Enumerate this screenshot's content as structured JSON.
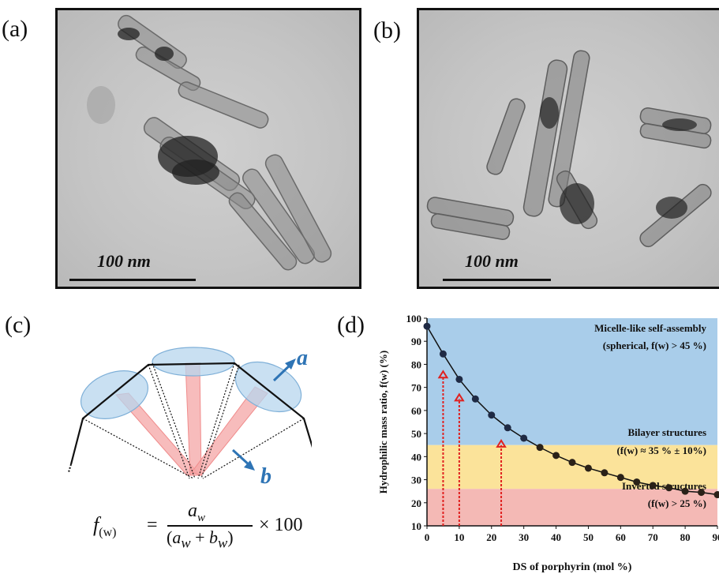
{
  "panels": {
    "a": {
      "label": "(a)",
      "scale_bar": "100 nm"
    },
    "b": {
      "label": "(b)",
      "scale_bar": "100 nm"
    },
    "c": {
      "label": "(c)",
      "vector_a": "a",
      "vector_b": "b",
      "formula": {
        "lhs": "f",
        "lhs_sub": "(w)",
        "num": "a",
        "num_sub": "w",
        "den_a": "a",
        "den_a_sub": "w",
        "den_b": "b",
        "den_b_sub": "w",
        "times": "× 100"
      }
    },
    "d": {
      "label": "(d)"
    }
  },
  "colors": {
    "micelle_region": "#a9cdea",
    "bilayer_region": "#fbe39a",
    "inverted_region": "#f4b9b5",
    "arrow": "#e0201f",
    "vector": "#2e74b5"
  },
  "chart_data": {
    "type": "line",
    "xlabel": "DS of porphyrin (mol %)",
    "ylabel": "Hydrophilic mass ratio, f(w) (%)",
    "xlim": [
      0,
      90
    ],
    "ylim": [
      10,
      100
    ],
    "xticks": [
      0,
      10,
      20,
      30,
      40,
      50,
      60,
      70,
      80,
      90
    ],
    "yticks": [
      10,
      20,
      30,
      40,
      50,
      60,
      70,
      80,
      90,
      100
    ],
    "regions": [
      {
        "name": "Micelle-like self-assembly",
        "detail": "(spherical, f(w) > 45 %)",
        "from": 45,
        "to": 100,
        "color": "#a9cdea"
      },
      {
        "name": "Bilayer structures",
        "detail": "(f(w) ≈ 35 % ± 10%)",
        "from": 26,
        "to": 45,
        "color": "#fbe39a"
      },
      {
        "name": "Inverted structures",
        "detail": "(f(w) > 25 %)",
        "from": 10,
        "to": 26,
        "color": "#f4b9b5"
      }
    ],
    "series": [
      {
        "x": [
          0,
          5,
          10,
          15,
          20,
          25,
          30,
          35,
          40,
          45,
          50,
          55,
          60,
          65,
          70,
          75,
          80,
          85,
          90
        ],
        "y": [
          96.5,
          84.5,
          73.5,
          65,
          58,
          52.5,
          48,
          44,
          40.5,
          37.5,
          35,
          33,
          31,
          29,
          27.5,
          26.5,
          25,
          24.5,
          23.5
        ]
      }
    ],
    "arrows": [
      {
        "x": 5,
        "y_from": 10,
        "y_to": 77
      },
      {
        "x": 10,
        "y_from": 10,
        "y_to": 67
      },
      {
        "x": 23,
        "y_from": 10,
        "y_to": 47
      }
    ]
  }
}
